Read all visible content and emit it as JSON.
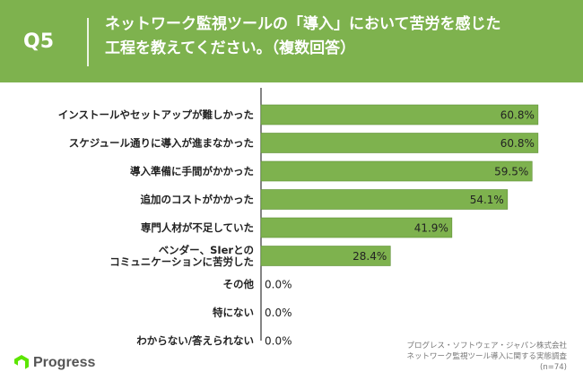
{
  "header": {
    "question_number": "Q5",
    "title_line1": "ネットワーク監視ツールの「導入」において苦労を感じた",
    "title_line2": "工程を教えてください。（複数回答）"
  },
  "source": {
    "company": "プログレス・ソフトウェア・ジャパン株式会社",
    "survey": "ネットワーク監視ツール導入に関する実態調査",
    "sample": "(n=74)"
  },
  "brand": {
    "name": "Progress",
    "logo_icon": "progress-logo-icon",
    "logo_color": "#5ce500"
  },
  "colors": {
    "header_bg": "#7eb24e",
    "bar": "#7eb24e",
    "bar_edge": "#5e8f34"
  },
  "chart_data": {
    "type": "bar",
    "orientation": "horizontal",
    "unit": "%",
    "categories": [
      [
        "インストールやセットアップが難しかった"
      ],
      [
        "スケジュール通りに導入が進まなかった"
      ],
      [
        "導入準備に手間がかかった"
      ],
      [
        "追加のコストがかかった"
      ],
      [
        "専門人材が不足していた"
      ],
      [
        "ベンダー、SIerとの",
        "コミュニケーションに苦労した"
      ],
      [
        "その他"
      ],
      [
        "特にない"
      ],
      [
        "わからない/答えられない"
      ]
    ],
    "values": [
      60.8,
      60.8,
      59.5,
      54.1,
      41.9,
      28.4,
      0.0,
      0.0,
      0.0
    ],
    "value_labels": [
      "60.8%",
      "60.8%",
      "59.5%",
      "54.1%",
      "41.9%",
      "28.4%",
      "0.0%",
      "0.0%",
      "0.0%"
    ],
    "xlim": [
      0,
      70
    ],
    "grid": false,
    "legend": "none"
  }
}
